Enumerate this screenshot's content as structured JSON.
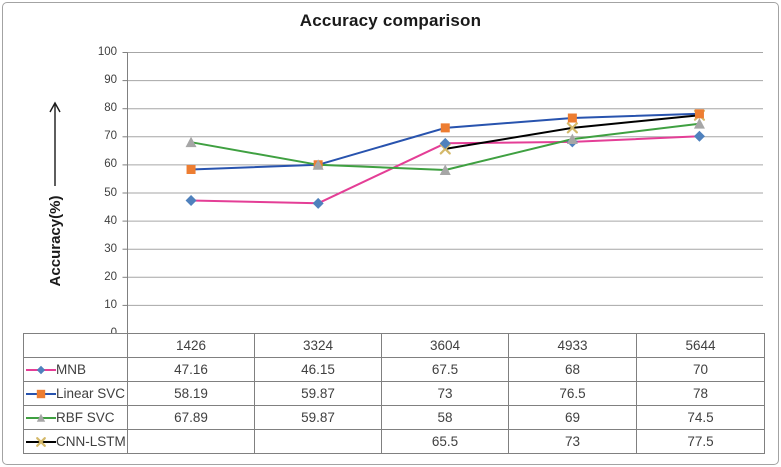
{
  "chart_data": {
    "type": "line",
    "title": "Accuracy comparison",
    "ylabel": "Accuracy(%)",
    "xlabel": "",
    "categories": [
      "1426",
      "3324",
      "3604",
      "4933",
      "5644"
    ],
    "series": [
      {
        "name": "MNB",
        "values": [
          47.16,
          46.15,
          67.5,
          68,
          70
        ],
        "line_color": "#E43E96",
        "marker": "diamond",
        "marker_color": "#4F81BD"
      },
      {
        "name": "Linear SVC",
        "values": [
          58.19,
          59.87,
          73,
          76.5,
          78
        ],
        "line_color": "#2853AE",
        "marker": "square",
        "marker_color": "#ED7D31"
      },
      {
        "name": "RBF SVC",
        "values": [
          67.89,
          59.87,
          58,
          69,
          74.5
        ],
        "line_color": "#3FA041",
        "marker": "triangle",
        "marker_color": "#A6A6A6"
      },
      {
        "name": "CNN-LSTM",
        "values": [
          null,
          null,
          65.5,
          73,
          77.5
        ],
        "line_color": "#000000",
        "marker": "x",
        "marker_color": "#D4B96A"
      }
    ],
    "ylim": [
      0,
      100
    ],
    "ytick_step": 10,
    "ytick_labels": [
      "0",
      "10",
      "20",
      "30",
      "40",
      "50",
      "60",
      "70",
      "80",
      "90",
      "100"
    ],
    "grid": "horizontal",
    "legend_position": "table-left-column",
    "data_table_shown": true
  },
  "colors": {
    "grid": "#A6A6A6",
    "axis": "#808080",
    "table_border": "#808080",
    "frame_border": "#A3A3A3",
    "title_text": "#1A1A1A",
    "table_text": "#404040",
    "tick_text": "#3F3F3F",
    "background": "#FFFFFF"
  }
}
